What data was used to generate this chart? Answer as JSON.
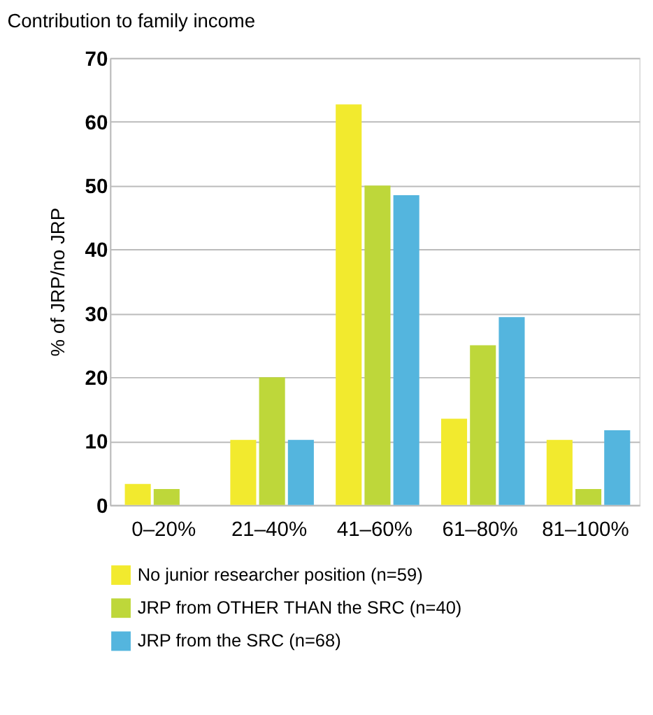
{
  "chart_data": {
    "type": "bar",
    "title": "Contribution to family income",
    "ylabel": "% of JRP/no JRP",
    "categories": [
      "0–20%",
      "21–40%",
      "41–60%",
      "61–80%",
      "81–100%"
    ],
    "series": [
      {
        "name": "No junior researcher position (n=59)",
        "color": "#f2ea2e",
        "values": [
          3.3,
          10.2,
          62.7,
          13.5,
          10.2
        ]
      },
      {
        "name": "JRP from OTHER THAN the SRC (n=40)",
        "color": "#bed73a",
        "values": [
          2.5,
          20,
          50,
          25,
          2.5
        ]
      },
      {
        "name": "JRP from the SRC (n=68)",
        "color": "#54b5de",
        "values": [
          0,
          10.2,
          48.5,
          29.4,
          11.7
        ]
      }
    ],
    "ylim": [
      0,
      70
    ],
    "yticks": [
      0,
      10,
      20,
      30,
      40,
      50,
      60,
      70
    ],
    "grid": "y",
    "legend": "bottom"
  }
}
